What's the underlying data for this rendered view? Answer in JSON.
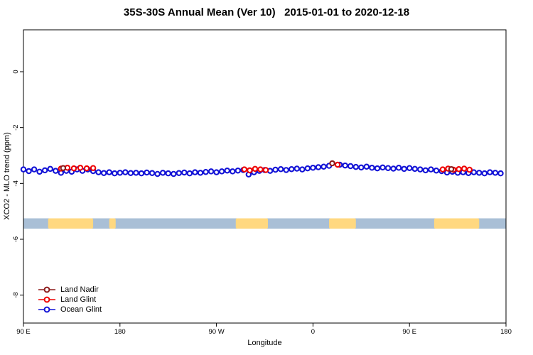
{
  "title": "35S-30S Annual Mean (Ver 10)   2015-01-01 to 2020-12-18",
  "chart_data": {
    "type": "scatter",
    "title": "35S-30S Annual Mean (Ver 10)   2015-01-01 to 2020-12-18",
    "xlabel": "Longitude",
    "ylabel": "XCO2 - MLO trend (ppm)",
    "xlim_deg": [
      90,
      540
    ],
    "ylim": [
      1.5,
      -9.0
    ],
    "grid": false,
    "legend_position": "bottom-left",
    "x_ticks": [
      {
        "deg": 90,
        "label": "90 E"
      },
      {
        "deg": 180,
        "label": "180"
      },
      {
        "deg": 270,
        "label": "90 W"
      },
      {
        "deg": 360,
        "label": "0"
      },
      {
        "deg": 450,
        "label": "90 E"
      },
      {
        "deg": 540,
        "label": "180"
      }
    ],
    "y_ticks": [
      {
        "v": 0,
        "label": "0"
      },
      {
        "v": -2,
        "label": "-2"
      },
      {
        "v": -4,
        "label": "-4"
      },
      {
        "v": -6,
        "label": "-6"
      },
      {
        "v": -8,
        "label": "-8"
      }
    ],
    "series": [
      {
        "name": "Land Nadir",
        "color": "#8B1A1A",
        "points": [
          [
            127,
            -3.45
          ],
          [
            378,
            -3.28
          ],
          [
            489,
            -3.49
          ]
        ]
      },
      {
        "name": "Land Glint",
        "color": "#EE0000",
        "points": [
          [
            125,
            -3.47
          ],
          [
            131,
            -3.44
          ],
          [
            137,
            -3.46
          ],
          [
            143,
            -3.44
          ],
          [
            149,
            -3.46
          ],
          [
            155,
            -3.45
          ],
          [
            296,
            -3.5
          ],
          [
            301,
            -3.53
          ],
          [
            306,
            -3.48
          ],
          [
            311,
            -3.5
          ],
          [
            316,
            -3.52
          ],
          [
            383,
            -3.33
          ],
          [
            481,
            -3.5
          ],
          [
            486,
            -3.47
          ],
          [
            491,
            -3.51
          ],
          [
            496,
            -3.49
          ],
          [
            501,
            -3.47
          ],
          [
            506,
            -3.51
          ]
        ]
      },
      {
        "name": "Ocean Glint",
        "color": "#1212D6",
        "points": [
          [
            90,
            -3.5
          ],
          [
            95,
            -3.56
          ],
          [
            100,
            -3.5
          ],
          [
            105,
            -3.58
          ],
          [
            110,
            -3.53
          ],
          [
            115,
            -3.48
          ],
          [
            120,
            -3.55
          ],
          [
            125,
            -3.62
          ],
          [
            130,
            -3.55
          ],
          [
            135,
            -3.58
          ],
          [
            140,
            -3.5
          ],
          [
            145,
            -3.55
          ],
          [
            150,
            -3.5
          ],
          [
            155,
            -3.56
          ],
          [
            160,
            -3.6
          ],
          [
            165,
            -3.63
          ],
          [
            170,
            -3.6
          ],
          [
            175,
            -3.64
          ],
          [
            180,
            -3.62
          ],
          [
            185,
            -3.6
          ],
          [
            190,
            -3.63
          ],
          [
            195,
            -3.62
          ],
          [
            200,
            -3.64
          ],
          [
            205,
            -3.61
          ],
          [
            210,
            -3.63
          ],
          [
            215,
            -3.66
          ],
          [
            220,
            -3.62
          ],
          [
            225,
            -3.64
          ],
          [
            230,
            -3.66
          ],
          [
            235,
            -3.63
          ],
          [
            240,
            -3.61
          ],
          [
            245,
            -3.64
          ],
          [
            250,
            -3.6
          ],
          [
            255,
            -3.62
          ],
          [
            260,
            -3.59
          ],
          [
            265,
            -3.57
          ],
          [
            270,
            -3.6
          ],
          [
            275,
            -3.57
          ],
          [
            280,
            -3.54
          ],
          [
            285,
            -3.57
          ],
          [
            290,
            -3.54
          ],
          [
            295,
            -3.52
          ],
          [
            300,
            -3.68
          ],
          [
            305,
            -3.6
          ],
          [
            310,
            -3.55
          ],
          [
            315,
            -3.52
          ],
          [
            320,
            -3.55
          ],
          [
            325,
            -3.51
          ],
          [
            330,
            -3.49
          ],
          [
            335,
            -3.52
          ],
          [
            340,
            -3.49
          ],
          [
            345,
            -3.47
          ],
          [
            350,
            -3.5
          ],
          [
            355,
            -3.46
          ],
          [
            360,
            -3.44
          ],
          [
            365,
            -3.42
          ],
          [
            370,
            -3.4
          ],
          [
            375,
            -3.37
          ],
          [
            385,
            -3.33
          ],
          [
            390,
            -3.36
          ],
          [
            395,
            -3.38
          ],
          [
            400,
            -3.41
          ],
          [
            405,
            -3.43
          ],
          [
            410,
            -3.4
          ],
          [
            415,
            -3.44
          ],
          [
            420,
            -3.46
          ],
          [
            425,
            -3.43
          ],
          [
            430,
            -3.45
          ],
          [
            435,
            -3.47
          ],
          [
            440,
            -3.44
          ],
          [
            445,
            -3.48
          ],
          [
            450,
            -3.45
          ],
          [
            455,
            -3.48
          ],
          [
            460,
            -3.5
          ],
          [
            465,
            -3.53
          ],
          [
            470,
            -3.5
          ],
          [
            475,
            -3.54
          ],
          [
            480,
            -3.56
          ],
          [
            485,
            -3.61
          ],
          [
            490,
            -3.58
          ],
          [
            495,
            -3.62
          ],
          [
            500,
            -3.6
          ],
          [
            505,
            -3.63
          ],
          [
            510,
            -3.6
          ],
          [
            515,
            -3.62
          ],
          [
            520,
            -3.64
          ],
          [
            525,
            -3.6
          ],
          [
            530,
            -3.62
          ],
          [
            535,
            -3.64
          ]
        ]
      }
    ],
    "map_band": {
      "y_range": [
        -5.25,
        -5.62
      ],
      "ocean_color": "#A9BFD6",
      "land_color": "#FFD880",
      "land_patches_deg": [
        [
          113,
          155
        ],
        [
          170,
          176
        ],
        [
          288,
          318
        ],
        [
          375,
          400
        ],
        [
          473,
          515
        ]
      ]
    }
  }
}
